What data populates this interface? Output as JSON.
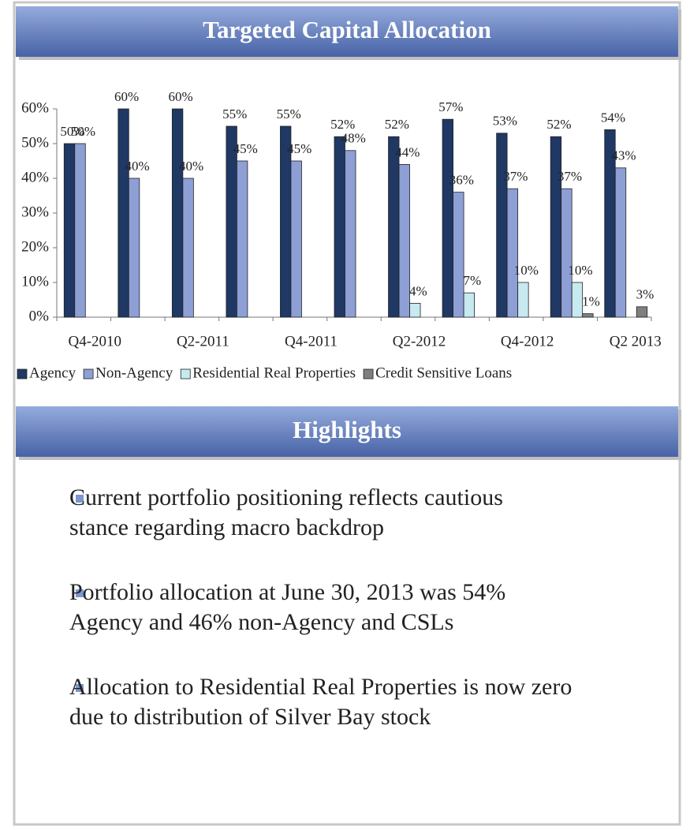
{
  "chart_data": {
    "type": "bar",
    "title": "Targeted Capital Allocation",
    "categories": [
      "Q4-2010",
      null,
      "Q2-2011",
      null,
      "Q4-2011",
      null,
      "Q2-2012",
      null,
      "Q4-2012",
      null,
      "Q2 2013"
    ],
    "series": [
      {
        "name": "Agency",
        "color": "#1f3864",
        "values": [
          50,
          60,
          60,
          55,
          55,
          52,
          52,
          57,
          53,
          52,
          54
        ],
        "value_labels": [
          "50%",
          "60%",
          "60%",
          "55%",
          "55%",
          "52%",
          "52%",
          "57%",
          "53%",
          "52%",
          "54%"
        ]
      },
      {
        "name": "Non-Agency",
        "color": "#8e9fd6",
        "values": [
          50,
          40,
          40,
          45,
          45,
          48,
          44,
          36,
          37,
          37,
          43
        ],
        "value_labels": [
          "50%",
          "40%",
          "40%",
          "45%",
          "45%",
          "48%",
          "44%",
          "36%",
          "37%",
          "37%",
          "43%"
        ]
      },
      {
        "name": "Residential Real Properties",
        "color": "#c7e9f0",
        "values": [
          null,
          null,
          null,
          null,
          null,
          null,
          4,
          7,
          10,
          10,
          null
        ],
        "value_labels": [
          null,
          null,
          null,
          null,
          null,
          null,
          "4%",
          "7%",
          "10%",
          "10%",
          null
        ]
      },
      {
        "name": "Credit Sensitive Loans",
        "color": "#7f7f7f",
        "values": [
          null,
          null,
          null,
          null,
          null,
          null,
          null,
          null,
          null,
          1,
          3
        ],
        "value_labels": [
          null,
          null,
          null,
          null,
          null,
          null,
          null,
          null,
          null,
          "1%",
          "3%"
        ]
      }
    ],
    "ylim": [
      0,
      60
    ],
    "yticks": [
      {
        "value": 0,
        "label": "0%"
      },
      {
        "value": 10,
        "label": "10%"
      },
      {
        "value": 20,
        "label": "20%"
      },
      {
        "value": 30,
        "label": "30%"
      },
      {
        "value": 40,
        "label": "40%"
      },
      {
        "value": 50,
        "label": "50%"
      },
      {
        "value": 60,
        "label": "60%"
      }
    ],
    "grid": false,
    "legend": "bottom"
  },
  "highlights": {
    "title": "Highlights",
    "bullets": [
      [
        "Current portfolio positioning reflects cautious",
        "stance regarding macro backdrop"
      ],
      [
        "Portfolio allocation at June 30, 2013 was 54%",
        "Agency and 46% non-Agency and CSLs"
      ],
      [
        "Allocation to Residential Real Properties is now zero",
        "due to distribution of Silver Bay stock"
      ]
    ]
  }
}
